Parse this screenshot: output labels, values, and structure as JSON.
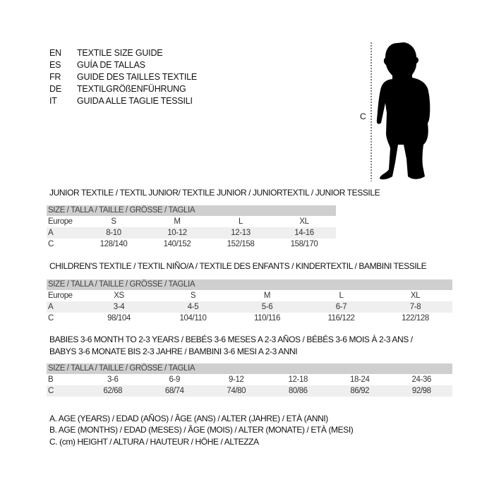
{
  "languages": [
    {
      "code": "EN",
      "title": "TEXTILE SIZE GUIDE"
    },
    {
      "code": "ES",
      "title": "GUÍA DE TALLAS"
    },
    {
      "code": "FR",
      "title": "GUIDE DES TAILLES TEXTILE"
    },
    {
      "code": "DE",
      "title": "TEXTILGRÖßENFÜHRUNG"
    },
    {
      "code": "IT",
      "title": "GUIDA ALLE TAGLIE TESSILI"
    }
  ],
  "figure": {
    "measure_label": "C"
  },
  "junior": {
    "title": "JUNIOR TEXTILE / TEXTIL JUNIOR/ TEXTILE JUNIOR / JUNIORTEXTIL / JUNIOR TESSILE",
    "header": "SIZE / TALLA / TAILLE / GRÖSSE / TAGLIA",
    "rows": [
      {
        "label": "Europe",
        "values": [
          "S",
          "M",
          "L",
          "XL"
        ]
      },
      {
        "label": "A",
        "values": [
          "8-10",
          "10-12",
          "12-13",
          "14-16"
        ]
      },
      {
        "label": "C",
        "values": [
          "128/140",
          "140/152",
          "152/158",
          "158/170"
        ]
      }
    ]
  },
  "children": {
    "title": "CHILDREN'S TEXTILE / TEXTIL NIÑO/A / TEXTILE DES ENFANTS / KINDERTEXTIL / BAMBINI TESSILE",
    "header": "SIZE / TALLA / TAILLE / GRÖSSE / TAGLIA",
    "rows": [
      {
        "label": "Europe",
        "values": [
          "XS",
          "S",
          "M",
          "L",
          "XL"
        ]
      },
      {
        "label": "A",
        "values": [
          "3-4",
          "4-5",
          "5-6",
          "6-7",
          "7-8"
        ]
      },
      {
        "label": "C",
        "values": [
          "98/104",
          "104/110",
          "110/116",
          "116/122",
          "122/128"
        ]
      }
    ]
  },
  "babies": {
    "title_line1": "BABIES 3-6 MONTH TO 2-3 YEARS / BEBÉS 3-6 MESES A 2-3 AÑOS / BÉBÉS 3-6 MOIS À 2-3 ANS /",
    "title_line2": "BABYS 3-6 MONATE BIS 2-3 JAHRE / BAMBINI 3-6 MESI A 2-3 ANNI",
    "header": "SIZE / TALLA / TAILLE / GRÖSSE / TAGLIA",
    "rows": [
      {
        "label": "B",
        "values": [
          "3-6",
          "6-9",
          "9-12",
          "12-18",
          "18-24",
          "24-36"
        ]
      },
      {
        "label": "C",
        "values": [
          "62/68",
          "68/74",
          "74/80",
          "80/86",
          "86/92",
          "92/98"
        ]
      }
    ]
  },
  "legend": [
    "A. AGE (YEARS) / EDAD (AÑOS) / ÂGE (ANS) / ALTER (JAHRE) / ETÀ (ANNI)",
    "B. AGE (MONTHS) / EDAD (MESES) / ÂGE (MOIS) / ALTER (MONATE) / ETÀ (MESI)",
    "C. (cm) HEIGHT / ALTURA / HAUTEUR / HÖHE / ALTEZZA"
  ]
}
